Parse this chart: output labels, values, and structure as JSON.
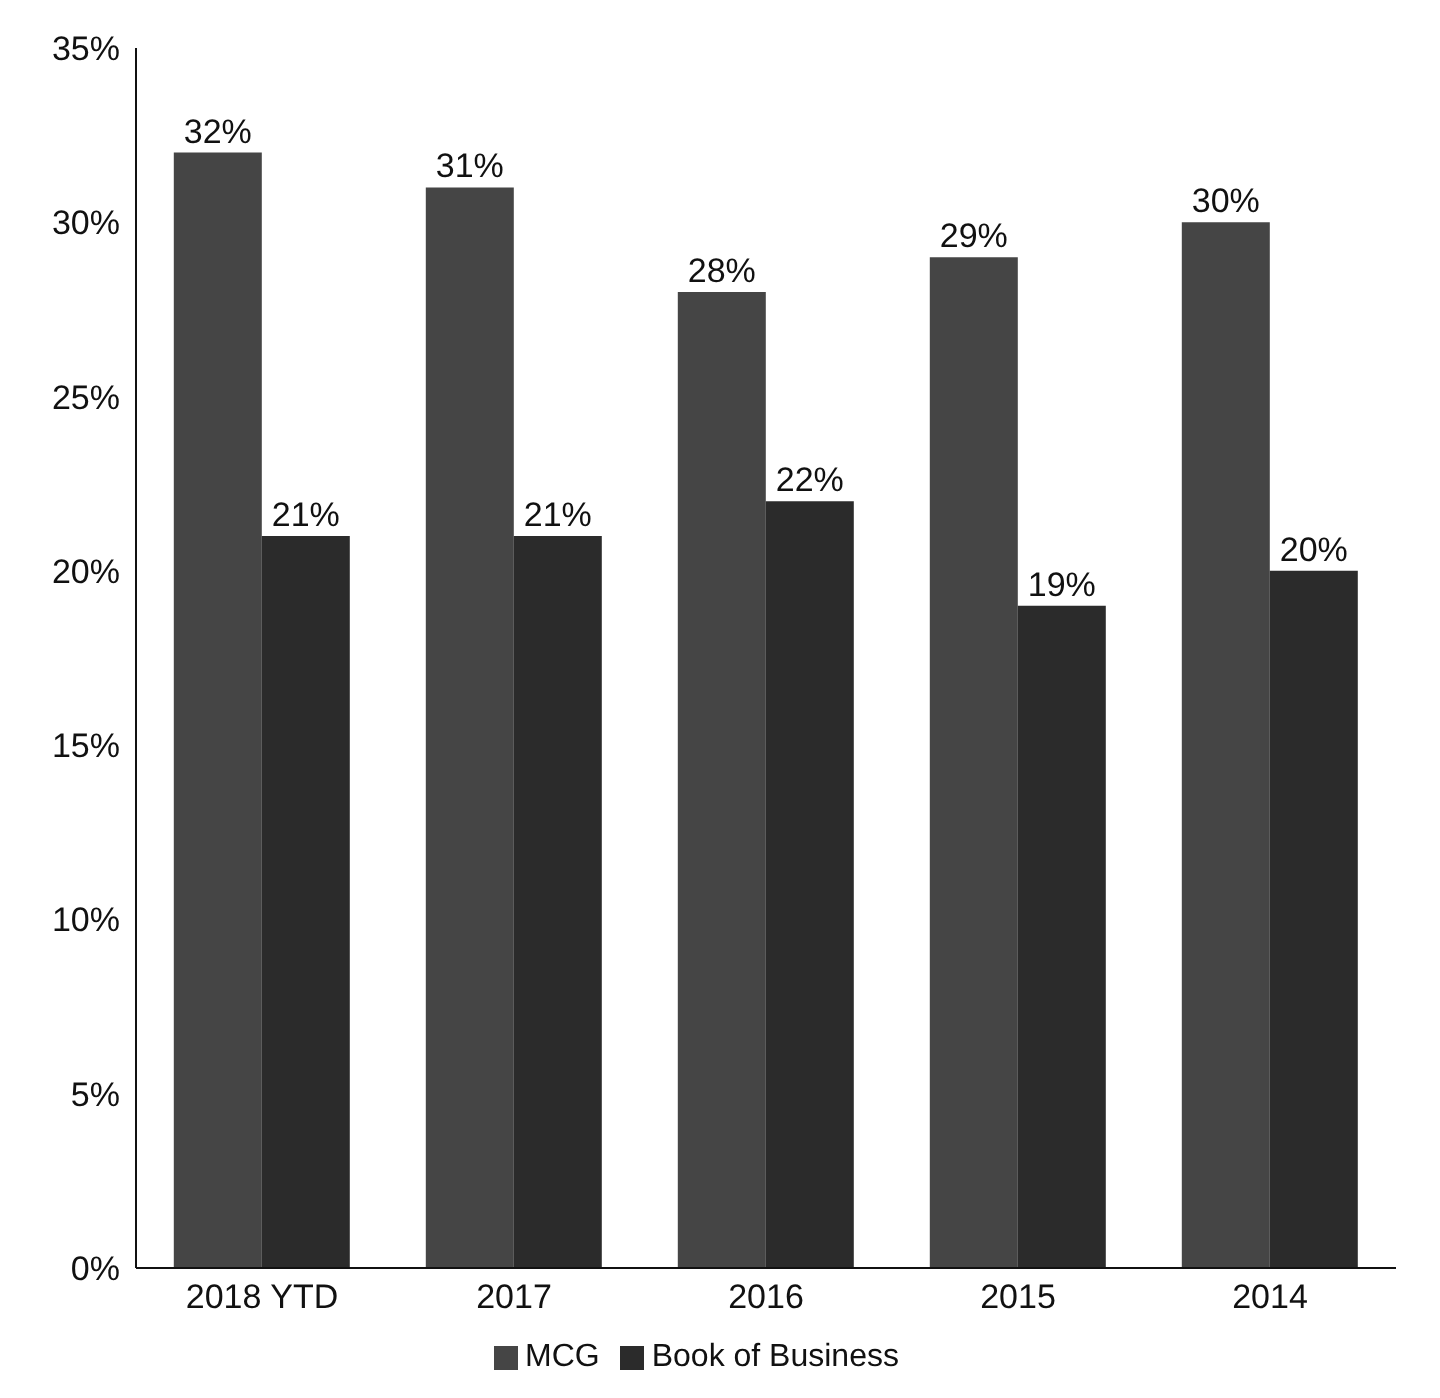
{
  "chart_data": {
    "type": "bar",
    "categories": [
      "2018 YTD",
      "2017",
      "2016",
      "2015",
      "2014"
    ],
    "series": [
      {
        "name": "MCG",
        "color": "#454545",
        "values": [
          32,
          31,
          28,
          29,
          30
        ],
        "value_labels": [
          "32%",
          "31%",
          "28%",
          "29%",
          "30%"
        ]
      },
      {
        "name": "Book of Business",
        "color": "#2b2b2b",
        "values": [
          21,
          21,
          22,
          19,
          20
        ],
        "value_labels": [
          "21%",
          "21%",
          "22%",
          "19%",
          "20%"
        ]
      }
    ],
    "ylim": [
      0,
      35
    ],
    "yticks": [
      {
        "value": 0,
        "label": "0%"
      },
      {
        "value": 5,
        "label": "5%"
      },
      {
        "value": 10,
        "label": "10%"
      },
      {
        "value": 15,
        "label": "15%"
      },
      {
        "value": 20,
        "label": "20%"
      },
      {
        "value": 25,
        "label": "25%"
      },
      {
        "value": 30,
        "label": "30%"
      },
      {
        "value": 35,
        "label": "35%"
      }
    ],
    "grid": false,
    "legend": "bottom"
  }
}
